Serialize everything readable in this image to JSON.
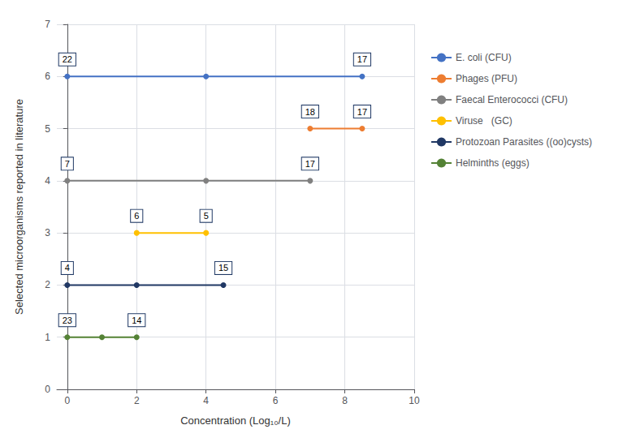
{
  "chart_data": {
    "type": "line",
    "xlabel": "Concentration (Log₁₀/L)",
    "ylabel": "Selected microorganisms reported in literature",
    "xlim": [
      -0.3,
      10
    ],
    "ylim": [
      0,
      7
    ],
    "xticks": [
      0,
      2,
      4,
      6,
      8,
      10
    ],
    "yticks": [
      0,
      1,
      2,
      3,
      4,
      5,
      6,
      7
    ],
    "grid": true,
    "legend": "right",
    "marker": "circle",
    "series": [
      {
        "name": "E. coli (CFU)",
        "color": "#4472C4",
        "x": [
          0,
          4,
          8.5
        ],
        "values": [
          6,
          6,
          6
        ],
        "annotations": [
          {
            "x": 0,
            "label": "22"
          },
          {
            "x": 8.5,
            "label": "17"
          }
        ]
      },
      {
        "name": "Phages (PFU)",
        "color": "#ED7D31",
        "x": [
          7,
          8.5
        ],
        "values": [
          5,
          5
        ],
        "annotations": [
          {
            "x": 7,
            "label": "18"
          },
          {
            "x": 8.5,
            "label": "17"
          }
        ]
      },
      {
        "name": "Faecal Enterococci (CFU)",
        "color": "#808080",
        "x": [
          0,
          4,
          7
        ],
        "values": [
          4,
          4,
          4
        ],
        "annotations": [
          {
            "x": 0,
            "label": "7"
          },
          {
            "x": 7,
            "label": "17"
          }
        ]
      },
      {
        "name": "Viruse   (GC)",
        "color": "#FFC000",
        "x": [
          2,
          4
        ],
        "values": [
          3,
          3
        ],
        "annotations": [
          {
            "x": 2,
            "label": "6"
          },
          {
            "x": 4,
            "label": "5"
          }
        ]
      },
      {
        "name": "Protozoan Parasites ((oo)cysts)",
        "color": "#203864",
        "x": [
          0,
          2,
          4.5
        ],
        "values": [
          2,
          2,
          2
        ],
        "annotations": [
          {
            "x": 0,
            "label": "4"
          },
          {
            "x": 4.5,
            "label": "15"
          }
        ]
      },
      {
        "name": "Helminths (eggs)",
        "color": "#548235",
        "x": [
          0,
          1,
          2
        ],
        "values": [
          1,
          1,
          1
        ],
        "annotations": [
          {
            "x": 0,
            "label": "23"
          },
          {
            "x": 2,
            "label": "14"
          }
        ]
      }
    ]
  }
}
